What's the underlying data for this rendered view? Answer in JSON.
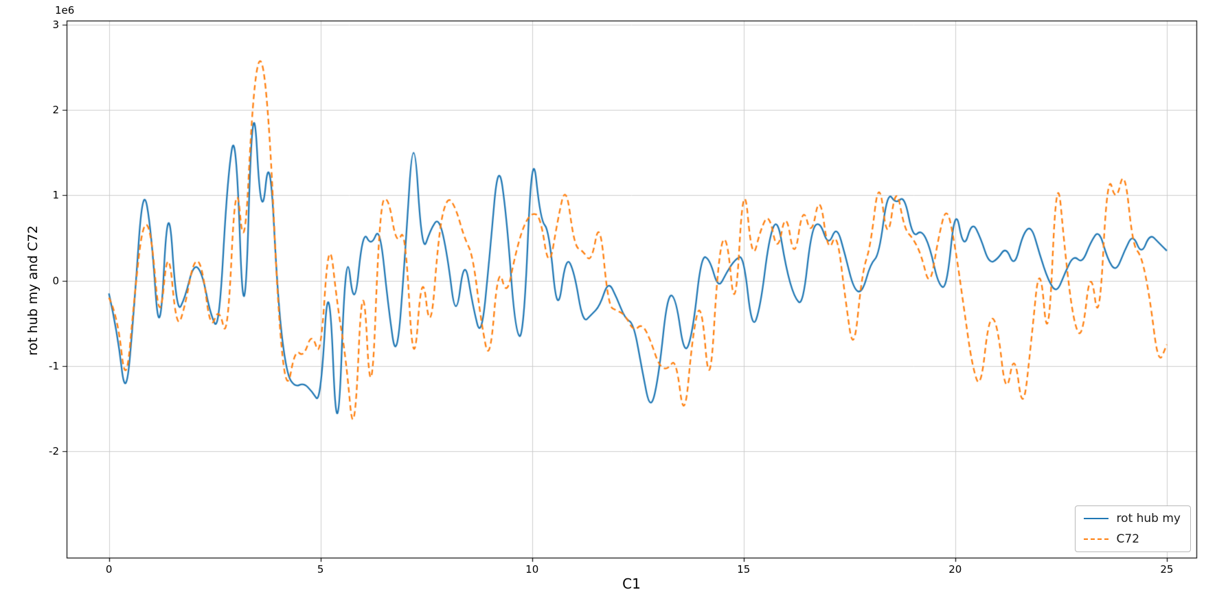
{
  "figure": {
    "background": "#ffffff"
  },
  "chart_data": {
    "type": "line",
    "title": "",
    "xlabel": "C1",
    "ylabel": "rot hub my and C72",
    "y_offset_label": "1e6",
    "y_unit_multiplier": 1000000,
    "xlim": [
      -1.0,
      25.7
    ],
    "ylim": [
      -3.25,
      3.05
    ],
    "xticks": [
      0,
      5,
      10,
      15,
      20,
      25
    ],
    "yticks": [
      -2,
      -1,
      0,
      1,
      2,
      3
    ],
    "grid": true,
    "legend_position": "lower right",
    "colors": {
      "grid": "#cccccc",
      "spine": "#000000",
      "series_blue": "#1f77b4",
      "series_orange": "#ff7f0e"
    },
    "x": {
      "start": 0,
      "step": 0.2,
      "count": 126
    },
    "series": [
      {
        "name": "rot hub my",
        "color": "#1f77b4",
        "style": "solid",
        "values": [
          -0.15,
          -0.6,
          -1.45,
          -0.3,
          1.15,
          0.6,
          -0.85,
          1.1,
          -0.4,
          -0.2,
          0.2,
          0.1,
          -0.4,
          -0.6,
          1.2,
          1.85,
          -0.95,
          2.45,
          0.6,
          1.6,
          -0.3,
          -1.1,
          -1.25,
          -1.2,
          -1.3,
          -1.45,
          0.25,
          -2.2,
          0.5,
          -0.4,
          0.6,
          0.4,
          0.65,
          -0.3,
          -1.0,
          0.3,
          1.9,
          0.3,
          0.6,
          0.75,
          0.3,
          -0.5,
          0.3,
          -0.3,
          -0.7,
          0.3,
          1.45,
          0.75,
          -0.6,
          -0.7,
          1.65,
          0.7,
          0.6,
          -0.45,
          0.3,
          0.1,
          -0.5,
          -0.4,
          -0.3,
          0.0,
          -0.2,
          -0.45,
          -0.5,
          -1.05,
          -1.55,
          -1.1,
          -0.15,
          -0.2,
          -0.9,
          -0.6,
          0.3,
          0.25,
          -0.1,
          0.1,
          0.25,
          0.3,
          -0.6,
          -0.3,
          0.5,
          0.75,
          0.15,
          -0.2,
          -0.3,
          0.6,
          0.7,
          0.4,
          0.65,
          0.3,
          -0.1,
          -0.15,
          0.2,
          0.3,
          1.05,
          0.9,
          1.0,
          0.5,
          0.6,
          0.4,
          -0.05,
          -0.1,
          0.9,
          0.35,
          0.7,
          0.5,
          0.2,
          0.25,
          0.4,
          0.15,
          0.55,
          0.65,
          0.3,
          0.0,
          -0.15,
          0.1,
          0.3,
          0.2,
          0.45,
          0.6,
          0.25,
          0.1,
          0.35,
          0.55,
          0.3,
          0.55,
          0.45,
          0.35
        ]
      },
      {
        "name": "C72",
        "color": "#ff7f0e",
        "style": "dashed",
        "values": [
          -0.2,
          -0.4,
          -1.3,
          -0.2,
          0.7,
          0.6,
          -0.6,
          0.5,
          -0.6,
          -0.3,
          0.25,
          0.2,
          -0.6,
          -0.3,
          -0.75,
          1.35,
          0.2,
          2.2,
          2.75,
          1.8,
          -0.4,
          -1.35,
          -0.8,
          -0.9,
          -0.6,
          -0.95,
          0.6,
          -0.3,
          -0.9,
          -2.0,
          0.3,
          -1.7,
          0.9,
          1.0,
          0.4,
          0.65,
          -1.2,
          0.2,
          -0.7,
          0.6,
          1.0,
          0.85,
          0.5,
          0.3,
          -0.5,
          -1.0,
          0.2,
          -0.2,
          0.3,
          0.65,
          0.8,
          0.75,
          0.1,
          0.7,
          1.15,
          0.4,
          0.35,
          0.2,
          0.75,
          -0.3,
          -0.35,
          -0.4,
          -0.6,
          -0.5,
          -0.7,
          -1.0,
          -1.05,
          -0.9,
          -1.7,
          -0.6,
          -0.2,
          -1.4,
          0.3,
          0.6,
          -0.5,
          1.3,
          0.2,
          0.6,
          0.8,
          0.3,
          0.85,
          0.2,
          0.9,
          0.5,
          1.05,
          0.3,
          0.6,
          -0.2,
          -0.9,
          0.1,
          0.4,
          1.25,
          0.4,
          1.15,
          0.6,
          0.5,
          0.3,
          -0.1,
          0.5,
          0.9,
          0.4,
          -0.3,
          -1.0,
          -1.3,
          -0.4,
          -0.5,
          -1.4,
          -0.8,
          -1.6,
          -0.7,
          0.3,
          -0.9,
          1.4,
          0.3,
          -0.5,
          -0.7,
          0.2,
          -0.6,
          1.3,
          0.9,
          1.35,
          0.4,
          0.3,
          -0.2,
          -1.0,
          -0.75
        ]
      }
    ]
  }
}
